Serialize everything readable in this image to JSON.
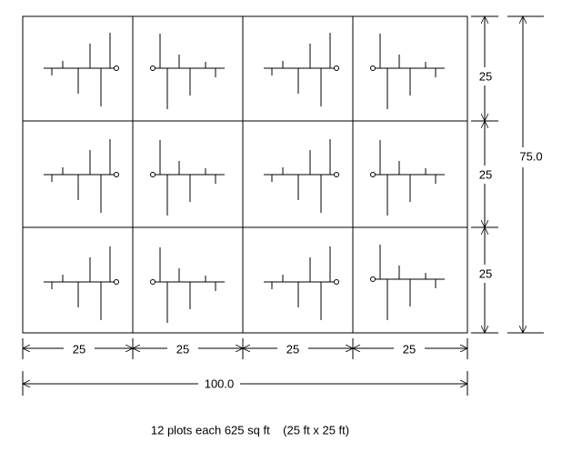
{
  "dimensions": {
    "column_widths": [
      "25",
      "25",
      "25",
      "25"
    ],
    "total_width": "100.0",
    "row_heights": [
      "25",
      "25",
      "25"
    ],
    "total_height": "75.0"
  },
  "caption": "12 plots each 625 sq ft    (25 ft x 25 ft)"
}
